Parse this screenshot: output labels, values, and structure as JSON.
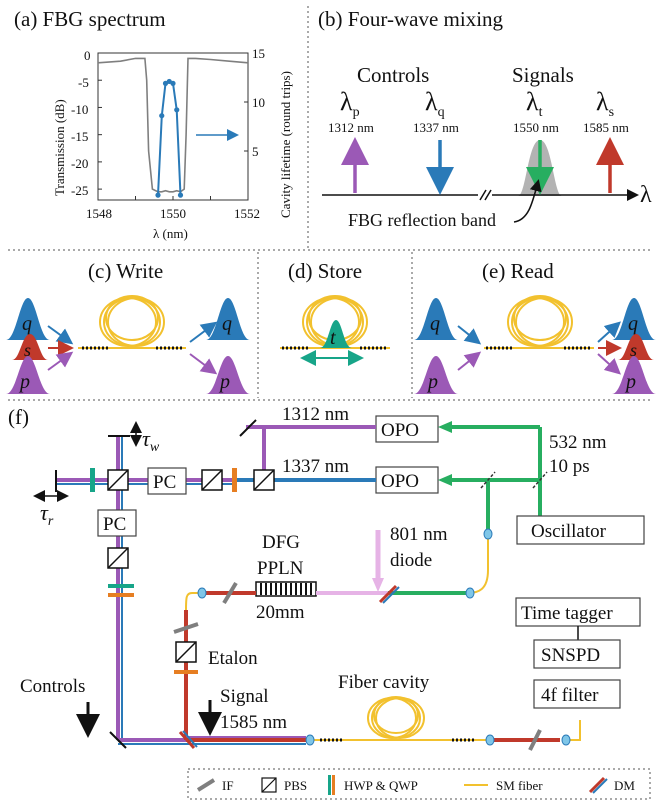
{
  "colors": {
    "purple": "#9b59b6",
    "blue": "#2a7ab8",
    "red": "#c0392b",
    "green": "#27ae60",
    "yellow": "#f2c12e",
    "gray": "#7f7f7f",
    "pink": "#e6b3e6",
    "teal": "#17a589",
    "orange": "#e67e22",
    "lightblue": "#7fc6e8"
  },
  "panel_a": {
    "title": "(a) FBG spectrum",
    "xlabel": "λ (nm)",
    "ylabel_left": "Transmission (dB)",
    "ylabel_right": "Cavity lifetime (round trips)",
    "x_ticks": [
      "1548",
      "1550",
      "1552"
    ],
    "y_left_ticks": [
      "0",
      "-5",
      "-10",
      "-15",
      "-20",
      "-25"
    ],
    "y_right_ticks": [
      "15",
      "10",
      "5"
    ]
  },
  "chart_data": {
    "type": "line",
    "xlim": [
      1548,
      1552
    ],
    "ylim_left": [
      -27,
      0
    ],
    "ylim_right": [
      0,
      15
    ],
    "series": [
      {
        "axis": "left",
        "color": "gray",
        "x": [
          1548.0,
          1548.6,
          1549.0,
          1549.25,
          1549.3,
          1549.35,
          1549.45,
          1549.6,
          1549.7,
          1549.8,
          1549.9,
          1550.0,
          1550.1,
          1550.2,
          1550.3,
          1550.35,
          1550.4,
          1550.6,
          1551.0,
          1551.5,
          1552.0
        ],
        "y": [
          -1.8,
          -1.5,
          -1.0,
          -1.0,
          -5.0,
          -18.0,
          -25.0,
          -25.5,
          -25.5,
          -25.3,
          -25.5,
          -25.5,
          -25.3,
          -25.5,
          -25.0,
          -15.0,
          -1.0,
          -1.0,
          -1.2,
          -1.5,
          -1.8
        ]
      },
      {
        "axis": "right",
        "color": "blue",
        "x": [
          1549.6,
          1549.7,
          1549.8,
          1549.9,
          1550.0,
          1550.1,
          1550.2
        ],
        "y": [
          0.5,
          8.6,
          11.9,
          12.1,
          11.9,
          9.2,
          0.5
        ]
      }
    ]
  },
  "panel_b": {
    "title": "(b) Four-wave mixing",
    "controls_label": "Controls",
    "signals_label": "Signals",
    "lambda_p": "λp",
    "lambda_q": "λq",
    "lambda_t": "λt",
    "lambda_s": "λs",
    "wl_p": "1312 nm",
    "wl_q": "1337 nm",
    "wl_t": "1550 nm",
    "wl_s": "1585 nm",
    "axis_symbol": "λ",
    "fbg_label": "FBG reflection band"
  },
  "panel_c": {
    "title": "(c) Write"
  },
  "panel_d": {
    "title": "(d) Store"
  },
  "panel_e": {
    "title": "(e) Read"
  },
  "pulses": {
    "q": "q",
    "s": "s",
    "p": "p",
    "t": "t"
  },
  "panel_f": {
    "title": "(f)",
    "tau_w": "τw",
    "tau_r": "τr",
    "pc": "PC",
    "opo": "OPO",
    "nm1312": "1312 nm",
    "nm1337": "1337 nm",
    "nm532": "532 nm",
    "ps10": "10 ps",
    "oscillator": "Oscillator",
    "diode_nm": "801 nm",
    "diode": "diode",
    "dfg": "DFG",
    "ppln": "PPLN",
    "length": "20mm",
    "etalon": "Etalon",
    "controls": "Controls",
    "signal": "Signal",
    "signal_nm": "1585 nm",
    "fiber_cavity": "Fiber cavity",
    "time_tagger": "Time tagger",
    "snspd": "SNSPD",
    "filter": "4f filter"
  },
  "legend": {
    "if": "IF",
    "pbs": "PBS",
    "hwp": "HWP & QWP",
    "sm": "SM fiber",
    "dm": "DM"
  }
}
